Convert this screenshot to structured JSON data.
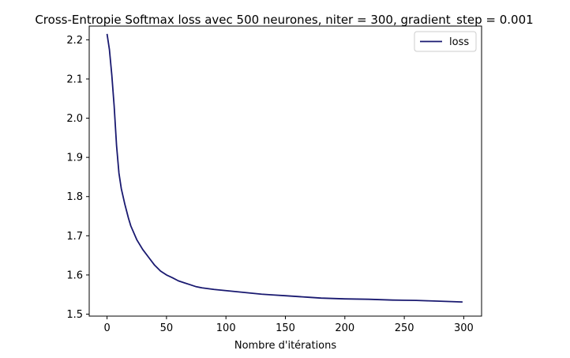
{
  "chart_data": {
    "type": "line",
    "title": "Cross-Entropie Softmax loss avec 500 neurones, niter = 300, gradient_step = 0.001",
    "xlabel": "Nombre d'itérations",
    "ylabel": "",
    "xlim": [
      -15,
      315
    ],
    "ylim": [
      1.495,
      2.235
    ],
    "xticks": [
      0,
      50,
      100,
      150,
      200,
      250,
      300
    ],
    "yticks": [
      1.5,
      1.6,
      1.7,
      1.8,
      1.9,
      2.0,
      2.1,
      2.2
    ],
    "xtick_labels": [
      "0",
      "50",
      "100",
      "150",
      "200",
      "250",
      "300"
    ],
    "ytick_labels": [
      "1.5",
      "1.6",
      "1.7",
      "1.8",
      "1.9",
      "2.0",
      "2.1",
      "2.2"
    ],
    "grid": false,
    "legend_position": "top-right",
    "series": [
      {
        "name": "loss",
        "color": "#191970",
        "x": [
          0,
          2,
          4,
          6,
          8,
          10,
          12,
          15,
          18,
          20,
          25,
          30,
          35,
          40,
          45,
          50,
          55,
          60,
          65,
          70,
          75,
          80,
          90,
          100,
          110,
          120,
          130,
          140,
          150,
          160,
          170,
          180,
          190,
          200,
          220,
          240,
          260,
          280,
          299
        ],
        "y": [
          2.215,
          2.175,
          2.11,
          2.03,
          1.93,
          1.86,
          1.82,
          1.78,
          1.745,
          1.725,
          1.69,
          1.665,
          1.645,
          1.625,
          1.61,
          1.6,
          1.593,
          1.585,
          1.58,
          1.575,
          1.57,
          1.567,
          1.563,
          1.56,
          1.557,
          1.554,
          1.551,
          1.549,
          1.547,
          1.545,
          1.543,
          1.541,
          1.54,
          1.539,
          1.538,
          1.536,
          1.535,
          1.533,
          1.531
        ]
      }
    ]
  }
}
